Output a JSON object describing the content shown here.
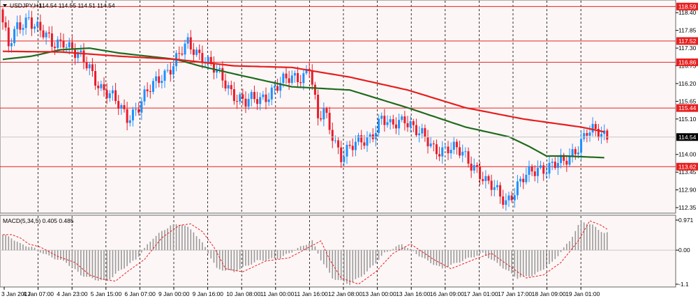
{
  "header": {
    "symbol_label": "USDJPY,H1",
    "ohlc": "114.54 114.55 114.51 114.54"
  },
  "indicator": {
    "label": "MACD(5,34,5) 0.405 0.485"
  },
  "colors": {
    "background": "#fdf6f6",
    "grid": "#000000",
    "bull_candle": "#1e90ff",
    "bear_candle": "#e81c2a",
    "ma_fast": "#e61e1e",
    "ma_slow": "#1e6b1e",
    "level_line": "#e82020",
    "macd_hist": "#999999",
    "macd_signal": "#e82020"
  },
  "price_axis": {
    "ticks": [
      "118.40",
      "117.85",
      "117.30",
      "116.75",
      "116.20",
      "115.65",
      "115.10",
      "114.00",
      "113.45",
      "112.90",
      "112.35"
    ]
  },
  "macd_axis": {
    "ticks": [
      "0.971",
      "0.00",
      "-1.1"
    ]
  },
  "levels": [
    {
      "value": 118.59,
      "label": "118.59"
    },
    {
      "value": 117.52,
      "label": "117.52"
    },
    {
      "value": 116.86,
      "label": "116.86"
    },
    {
      "value": 115.44,
      "label": "115.44"
    },
    {
      "value": 113.62,
      "label": "113.62"
    }
  ],
  "current_price": {
    "value": 114.54,
    "label": "114.54"
  },
  "time_axis": {
    "labels": [
      "3 Jan 2017",
      "4 Jan 07:00",
      "4 Jan 23:00",
      "5 Jan 15:00",
      "6 Jan 07:00",
      "9 Jan 00:00",
      "9 Jan 16:00",
      "10 Jan 08:00",
      "11 Jan 00:00",
      "11 Jan 16:00",
      "12 Jan 08:00",
      "13 Jan 00:00",
      "13 Jan 16:00",
      "16 Jan 09:00",
      "17 Jan 01:00",
      "17 Jan 17:00",
      "18 Jan 09:00",
      "19 Jan 01:00"
    ]
  },
  "chart_data": [
    {
      "type": "candlestick",
      "symbol": "USDJPY",
      "timeframe": "H1",
      "y_range": [
        112.2,
        118.75
      ],
      "x_range_bars": [
        0,
        210
      ],
      "price_path": {
        "x_bar": [
          0,
          3,
          6,
          10,
          14,
          18,
          22,
          26,
          31,
          35,
          37,
          44,
          48,
          56,
          60,
          65,
          70,
          75,
          80,
          85,
          90,
          95,
          100,
          105,
          107,
          110,
          112,
          118,
          122,
          128,
          132,
          135,
          140,
          145,
          150,
          155,
          160,
          165,
          168,
          175,
          181,
          186,
          195,
          203,
          208
        ],
        "close": [
          118.5,
          117.3,
          117.9,
          118.3,
          117.8,
          117.4,
          117.6,
          117.1,
          116.7,
          116.1,
          115.9,
          115.2,
          115.5,
          116.5,
          116.8,
          117.4,
          117.1,
          116.5,
          116.0,
          115.6,
          115.7,
          116.1,
          116.3,
          116.5,
          116.8,
          115.0,
          115.3,
          114.0,
          114.2,
          114.6,
          115.1,
          114.8,
          115.2,
          114.6,
          114.2,
          114.2,
          114.0,
          113.6,
          113.1,
          112.6,
          113.2,
          113.6,
          113.7,
          114.7,
          114.6
        ]
      },
      "moving_averages": [
        {
          "color": "red",
          "x_bar": [
            0,
            20,
            40,
            60,
            80,
            100,
            120,
            140,
            160,
            180,
            200,
            208
          ],
          "values": [
            117.2,
            117.18,
            117.05,
            116.95,
            116.75,
            116.7,
            116.4,
            116.0,
            115.45,
            115.1,
            114.85,
            114.7
          ]
        },
        {
          "color": "green",
          "x_bar": [
            0,
            10,
            20,
            30,
            40,
            60,
            68,
            80,
            100,
            110,
            120,
            140,
            160,
            175,
            182,
            188,
            195,
            208
          ],
          "values": [
            116.95,
            117.05,
            117.25,
            117.3,
            117.15,
            116.95,
            116.75,
            116.5,
            116.1,
            116.05,
            116.0,
            115.45,
            114.85,
            114.55,
            114.25,
            113.95,
            113.95,
            113.9
          ]
        }
      ],
      "horizontal_levels": [
        118.59,
        117.52,
        116.86,
        115.44,
        113.62
      ],
      "last_price": 114.54
    },
    {
      "type": "bar",
      "name": "MACD(5,34,5)",
      "y_range": [
        -1.1,
        0.971
      ],
      "histogram_path": {
        "x_bar": [
          0,
          3,
          6,
          10,
          16,
          22,
          27,
          32,
          36,
          40,
          46,
          52,
          58,
          62,
          66,
          70,
          74,
          80,
          88,
          96,
          103,
          107,
          110,
          114,
          120,
          126,
          132,
          138,
          146,
          152,
          160,
          166,
          172,
          178,
          184,
          190,
          196,
          200,
          204,
          208
        ],
        "values": [
          0.5,
          0.4,
          0.2,
          0.1,
          -0.2,
          -0.4,
          -0.8,
          -0.95,
          -1.0,
          -0.7,
          -0.3,
          0.4,
          0.8,
          0.85,
          0.6,
          0.1,
          -0.6,
          -0.7,
          -0.35,
          -0.25,
          0.1,
          0.3,
          -0.3,
          -0.9,
          -1.1,
          -0.7,
          -0.1,
          0.2,
          -0.3,
          -0.6,
          -0.3,
          -0.1,
          -0.5,
          -0.9,
          -0.8,
          -0.4,
          0.3,
          0.95,
          0.8,
          0.55
        ]
      },
      "last_values": {
        "macd": 0.405,
        "signal": 0.485
      }
    }
  ]
}
